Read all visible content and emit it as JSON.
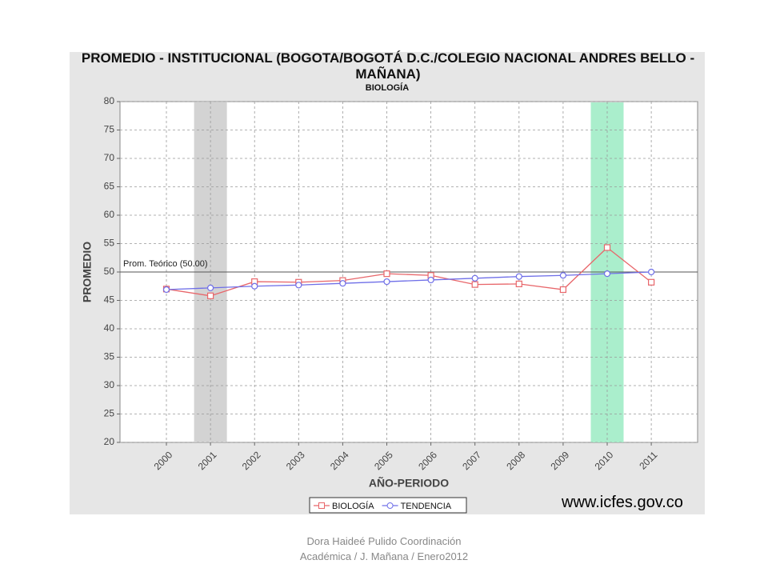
{
  "chart_data": {
    "type": "line",
    "title": "PROMEDIO - INSTITUCIONAL (BOGOTA/BOGOTÁ D.C./COLEGIO NACIONAL ANDRES BELLO - MAÑANA)",
    "subtitle": "BIOLOGÍA",
    "x_label": "AÑO-PERIODO",
    "y_label": "PROMEDIO",
    "categories": [
      "2000",
      "2001",
      "2002",
      "2003",
      "2004",
      "2005",
      "2006",
      "2007",
      "2008",
      "2009",
      "2010",
      "2011"
    ],
    "series": [
      {
        "name": "BIOLOGÍA",
        "color": "#e8666a",
        "marker": "square",
        "values": [
          47.0,
          45.8,
          48.3,
          48.2,
          48.5,
          49.7,
          49.4,
          47.8,
          47.9,
          46.9,
          54.3,
          48.2
        ]
      },
      {
        "name": "TENDENCIA",
        "color": "#6f6fe8",
        "marker": "circle",
        "values": [
          46.9,
          47.2,
          47.5,
          47.7,
          48.0,
          48.3,
          48.6,
          48.9,
          49.2,
          49.4,
          49.7,
          50.0
        ]
      }
    ],
    "ylim": [
      20,
      80
    ],
    "yticks": [
      20,
      25,
      30,
      35,
      40,
      45,
      50,
      55,
      60,
      65,
      70,
      75,
      80
    ],
    "grid": true,
    "reference_line": {
      "value": 50,
      "label": "Prom. Teórico (50.00)"
    },
    "highlights": [
      {
        "category": "2001",
        "color": "#d3d3d3"
      },
      {
        "category": "2010",
        "color": "#aaeecc"
      }
    ],
    "legend": "bottom"
  },
  "site": "www.icfes.gov.co",
  "footer": [
    "Dora Haideé Pulido  Coordinación",
    "Académica / J. Mañana  / Enero2012"
  ]
}
